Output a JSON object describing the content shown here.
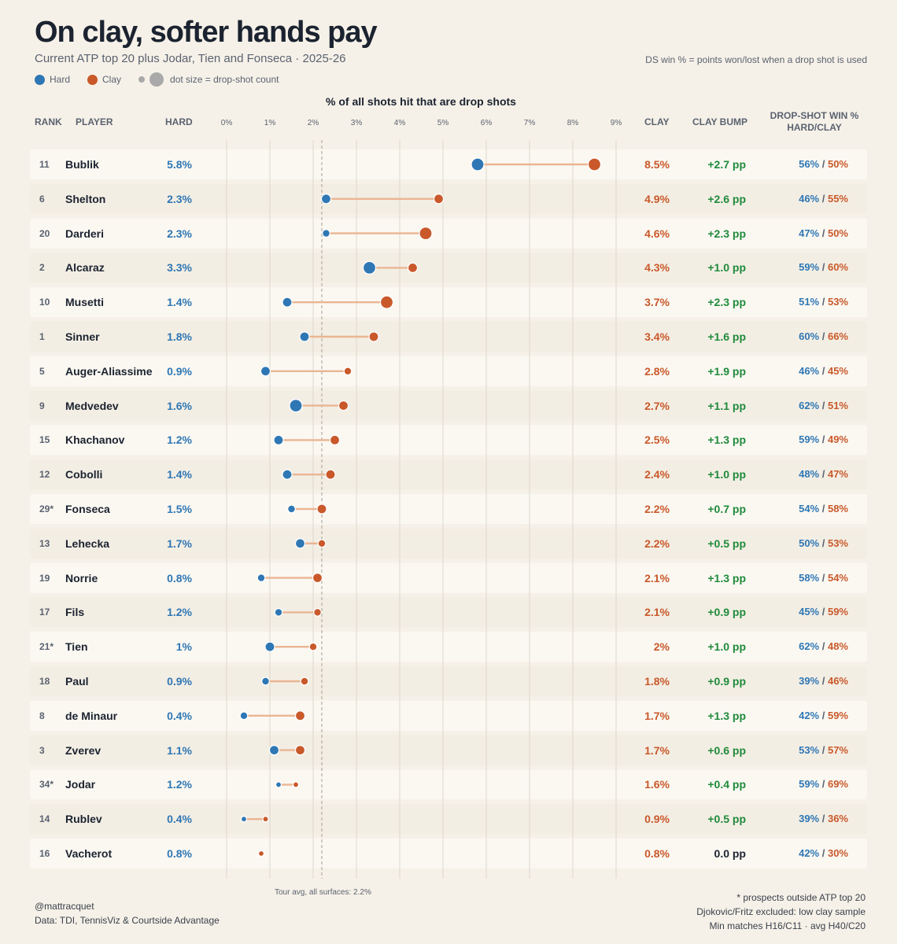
{
  "title": "On clay, softer hands pay",
  "subtitle": "Current ATP top 20 plus Jodar, Tien and Fonseca · 2025-26",
  "note_right": "DS win % = points won/lost when a drop shot is used",
  "legend": {
    "hard": "Hard",
    "clay": "Clay",
    "size": "dot size = drop-shot count"
  },
  "headers": {
    "rank": "RANK",
    "player": "PLAYER",
    "hard": "HARD",
    "clay": "CLAY",
    "bump": "CLAY BUMP",
    "ds_line1": "DROP-SHOT WIN %",
    "ds_line2": "HARD/CLAY"
  },
  "colors": {
    "hard": "#2f77b4",
    "clay": "#c9592a",
    "connector": "#eab592",
    "bump": "#1f8a3b"
  },
  "tour_avg_label": "Tour avg, all surfaces: 2.2%",
  "footer": {
    "handle": "@mattracquet",
    "source": "Data: TDI, TennisViz & Courtside Advantage",
    "note1": "* prospects outside ATP top 20",
    "note2": "Djokovic/Fritz excluded: low clay sample",
    "note3": "Min matches H16/C11 · avg H40/C20"
  },
  "chart_data": {
    "type": "dumbbell",
    "title": "On clay, softer hands pay",
    "xlabel": "% of all shots hit that are drop shots",
    "xlim": [
      0,
      9
    ],
    "x_ticks": [
      "0%",
      "1%",
      "2%",
      "3%",
      "4%",
      "5%",
      "6%",
      "7%",
      "8%",
      "9%"
    ],
    "tour_avg": 2.2,
    "legend_position": "top-left",
    "rows": [
      {
        "rank": "11",
        "player": "Bublik",
        "hard": 5.8,
        "clay": 8.5,
        "hard_label": "5.8%",
        "clay_label": "8.5%",
        "bump": "+2.7 pp",
        "ds_hard": "56%",
        "ds_clay": "50%",
        "hard_size": "large",
        "clay_size": "large"
      },
      {
        "rank": "6",
        "player": "Shelton",
        "hard": 2.3,
        "clay": 4.9,
        "hard_label": "2.3%",
        "clay_label": "4.9%",
        "bump": "+2.6 pp",
        "ds_hard": "46%",
        "ds_clay": "55%",
        "hard_size": "medium",
        "clay_size": "medium"
      },
      {
        "rank": "20",
        "player": "Darderi",
        "hard": 2.3,
        "clay": 4.6,
        "hard_label": "2.3%",
        "clay_label": "4.6%",
        "bump": "+2.3 pp",
        "ds_hard": "47%",
        "ds_clay": "50%",
        "hard_size": "small",
        "clay_size": "large"
      },
      {
        "rank": "2",
        "player": "Alcaraz",
        "hard": 3.3,
        "clay": 4.3,
        "hard_label": "3.3%",
        "clay_label": "4.3%",
        "bump": "+1.0 pp",
        "ds_hard": "59%",
        "ds_clay": "60%",
        "hard_size": "large",
        "clay_size": "medium"
      },
      {
        "rank": "10",
        "player": "Musetti",
        "hard": 1.4,
        "clay": 3.7,
        "hard_label": "1.4%",
        "clay_label": "3.7%",
        "bump": "+2.3 pp",
        "ds_hard": "51%",
        "ds_clay": "53%",
        "hard_size": "medium",
        "clay_size": "large"
      },
      {
        "rank": "1",
        "player": "Sinner",
        "hard": 1.8,
        "clay": 3.4,
        "hard_label": "1.8%",
        "clay_label": "3.4%",
        "bump": "+1.6 pp",
        "ds_hard": "60%",
        "ds_clay": "66%",
        "hard_size": "medium",
        "clay_size": "medium"
      },
      {
        "rank": "5",
        "player": "Auger-Aliassime",
        "hard": 0.9,
        "clay": 2.8,
        "hard_label": "0.9%",
        "clay_label": "2.8%",
        "bump": "+1.9 pp",
        "ds_hard": "46%",
        "ds_clay": "45%",
        "hard_size": "medium",
        "clay_size": "small"
      },
      {
        "rank": "9",
        "player": "Medvedev",
        "hard": 1.6,
        "clay": 2.7,
        "hard_label": "1.6%",
        "clay_label": "2.7%",
        "bump": "+1.1 pp",
        "ds_hard": "62%",
        "ds_clay": "51%",
        "hard_size": "large",
        "clay_size": "medium"
      },
      {
        "rank": "15",
        "player": "Khachanov",
        "hard": 1.2,
        "clay": 2.5,
        "hard_label": "1.2%",
        "clay_label": "2.5%",
        "bump": "+1.3 pp",
        "ds_hard": "59%",
        "ds_clay": "49%",
        "hard_size": "medium",
        "clay_size": "medium"
      },
      {
        "rank": "12",
        "player": "Cobolli",
        "hard": 1.4,
        "clay": 2.4,
        "hard_label": "1.4%",
        "clay_label": "2.4%",
        "bump": "+1.0 pp",
        "ds_hard": "48%",
        "ds_clay": "47%",
        "hard_size": "medium",
        "clay_size": "medium"
      },
      {
        "rank": "29*",
        "player": "Fonseca",
        "hard": 1.5,
        "clay": 2.2,
        "hard_label": "1.5%",
        "clay_label": "2.2%",
        "bump": "+0.7 pp",
        "ds_hard": "54%",
        "ds_clay": "58%",
        "hard_size": "small",
        "clay_size": "medium"
      },
      {
        "rank": "13",
        "player": "Lehecka",
        "hard": 1.7,
        "clay": 2.2,
        "hard_label": "1.7%",
        "clay_label": "2.2%",
        "bump": "+0.5 pp",
        "ds_hard": "50%",
        "ds_clay": "53%",
        "hard_size": "medium",
        "clay_size": "small"
      },
      {
        "rank": "19",
        "player": "Norrie",
        "hard": 0.8,
        "clay": 2.1,
        "hard_label": "0.8%",
        "clay_label": "2.1%",
        "bump": "+1.3 pp",
        "ds_hard": "58%",
        "ds_clay": "54%",
        "hard_size": "small",
        "clay_size": "medium"
      },
      {
        "rank": "17",
        "player": "Fils",
        "hard": 1.2,
        "clay": 2.1,
        "hard_label": "1.2%",
        "clay_label": "2.1%",
        "bump": "+0.9 pp",
        "ds_hard": "45%",
        "ds_clay": "59%",
        "hard_size": "small",
        "clay_size": "small"
      },
      {
        "rank": "21*",
        "player": "Tien",
        "hard": 1.0,
        "clay": 2.0,
        "hard_label": "1%",
        "clay_label": "2%",
        "bump": "+1.0 pp",
        "ds_hard": "62%",
        "ds_clay": "48%",
        "hard_size": "medium",
        "clay_size": "small"
      },
      {
        "rank": "18",
        "player": "Paul",
        "hard": 0.9,
        "clay": 1.8,
        "hard_label": "0.9%",
        "clay_label": "1.8%",
        "bump": "+0.9 pp",
        "ds_hard": "39%",
        "ds_clay": "46%",
        "hard_size": "small",
        "clay_size": "small"
      },
      {
        "rank": "8",
        "player": "de Minaur",
        "hard": 0.4,
        "clay": 1.7,
        "hard_label": "0.4%",
        "clay_label": "1.7%",
        "bump": "+1.3 pp",
        "ds_hard": "42%",
        "ds_clay": "59%",
        "hard_size": "small",
        "clay_size": "medium"
      },
      {
        "rank": "3",
        "player": "Zverev",
        "hard": 1.1,
        "clay": 1.7,
        "hard_label": "1.1%",
        "clay_label": "1.7%",
        "bump": "+0.6 pp",
        "ds_hard": "53%",
        "ds_clay": "57%",
        "hard_size": "medium",
        "clay_size": "medium"
      },
      {
        "rank": "34*",
        "player": "Jodar",
        "hard": 1.2,
        "clay": 1.6,
        "hard_label": "1.2%",
        "clay_label": "1.6%",
        "bump": "+0.4 pp",
        "ds_hard": "59%",
        "ds_clay": "69%",
        "hard_size": "tiny",
        "clay_size": "tiny"
      },
      {
        "rank": "14",
        "player": "Rublev",
        "hard": 0.4,
        "clay": 0.9,
        "hard_label": "0.4%",
        "clay_label": "0.9%",
        "bump": "+0.5 pp",
        "ds_hard": "39%",
        "ds_clay": "36%",
        "hard_size": "tiny",
        "clay_size": "tiny"
      },
      {
        "rank": "16",
        "player": "Vacherot",
        "hard": 0.8,
        "clay": 0.8,
        "hard_label": "0.8%",
        "clay_label": "0.8%",
        "bump": "0.0 pp",
        "ds_hard": "42%",
        "ds_clay": "30%",
        "hard_size": "tiny",
        "clay_size": "tiny"
      }
    ]
  }
}
